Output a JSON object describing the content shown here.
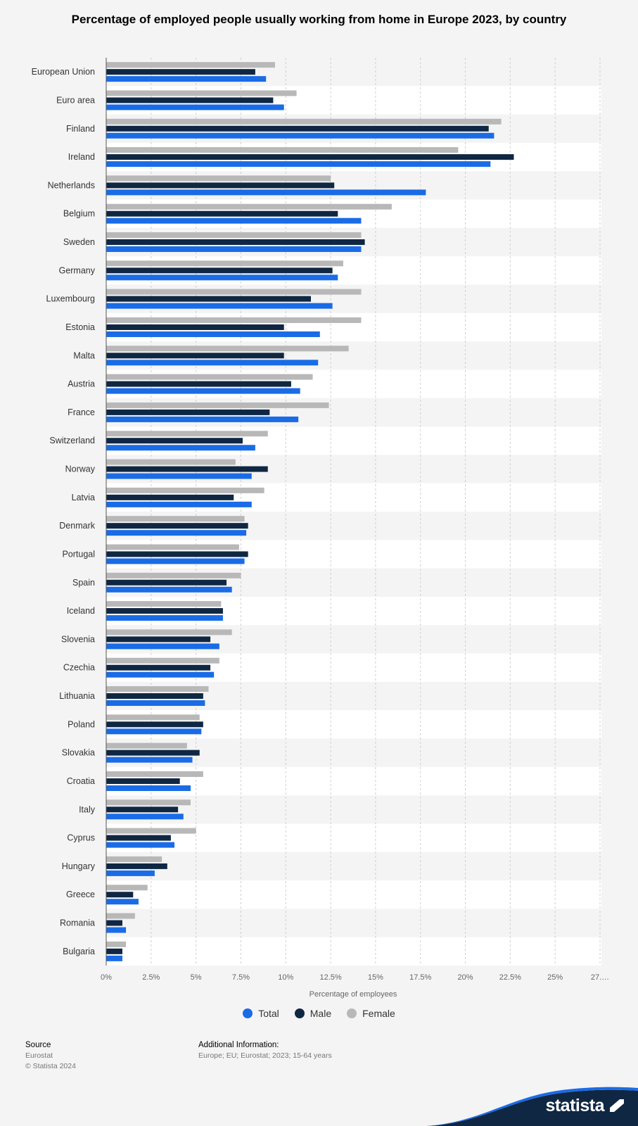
{
  "title": "Percentage of employed people usually working from home in Europe 2023, by country",
  "legend": [
    {
      "label": "Total",
      "color": "#1a6be6"
    },
    {
      "label": "Male",
      "color": "#0f2743"
    },
    {
      "label": "Female",
      "color": "#b8b8b8"
    }
  ],
  "footer": {
    "source_label": "Source",
    "source_lines": [
      "Eurostat",
      "© Statista 2024"
    ],
    "additional_label": "Additional Information:",
    "additional_text": "Europe; EU; Eurostat; 2023; 15-64 years",
    "brand": "statista"
  },
  "chart_data": {
    "type": "bar",
    "orientation": "horizontal",
    "title": "Percentage of employed people usually working from home in Europe 2023, by country",
    "xlabel": "Percentage of employees",
    "ylabel": "",
    "xlim": [
      0,
      27.5
    ],
    "xticks": [
      0,
      2.5,
      5,
      7.5,
      10,
      12.5,
      15,
      17.5,
      20,
      22.5,
      25,
      27.5
    ],
    "xtick_labels": [
      "0%",
      "2.5%",
      "5%",
      "7.5%",
      "10%",
      "12.5%",
      "15%",
      "17.5%",
      "20%",
      "22.5%",
      "25%",
      "27.…"
    ],
    "grid": true,
    "legend_position": "bottom",
    "categories": [
      "European Union",
      "Euro area",
      "Finland",
      "Ireland",
      "Netherlands",
      "Belgium",
      "Sweden",
      "Germany",
      "Luxembourg",
      "Estonia",
      "Malta",
      "Austria",
      "France",
      "Switzerland",
      "Norway",
      "Latvia",
      "Denmark",
      "Portugal",
      "Spain",
      "Iceland",
      "Slovenia",
      "Czechia",
      "Lithuania",
      "Poland",
      "Slovakia",
      "Croatia",
      "Italy",
      "Cyprus",
      "Hungary",
      "Greece",
      "Romania",
      "Bulgaria"
    ],
    "series": [
      {
        "name": "Female",
        "color": "#b8b8b8",
        "values": [
          9.4,
          10.6,
          22.0,
          19.6,
          12.5,
          15.9,
          14.2,
          13.2,
          14.2,
          14.2,
          13.5,
          11.5,
          12.4,
          9.0,
          7.2,
          8.8,
          7.7,
          7.4,
          7.5,
          6.4,
          7.0,
          6.3,
          5.7,
          5.2,
          4.5,
          5.4,
          4.7,
          5.0,
          3.1,
          2.3,
          1.6,
          1.1
        ]
      },
      {
        "name": "Male",
        "color": "#0f2743",
        "values": [
          8.3,
          9.3,
          21.3,
          22.7,
          12.7,
          12.9,
          14.4,
          12.6,
          11.4,
          9.9,
          9.9,
          10.3,
          9.1,
          7.6,
          9.0,
          7.1,
          7.9,
          7.9,
          6.7,
          6.5,
          5.8,
          5.8,
          5.4,
          5.4,
          5.2,
          4.1,
          4.0,
          3.6,
          3.4,
          1.5,
          0.9,
          0.9
        ]
      },
      {
        "name": "Total",
        "color": "#1a6be6",
        "values": [
          8.9,
          9.9,
          21.6,
          21.4,
          17.8,
          14.2,
          14.2,
          12.9,
          12.6,
          11.9,
          11.8,
          10.8,
          10.7,
          8.3,
          8.1,
          8.1,
          7.8,
          7.7,
          7.0,
          6.5,
          6.3,
          6.0,
          5.5,
          5.3,
          4.8,
          4.7,
          4.3,
          3.8,
          2.7,
          1.8,
          1.1,
          0.9
        ]
      }
    ]
  }
}
